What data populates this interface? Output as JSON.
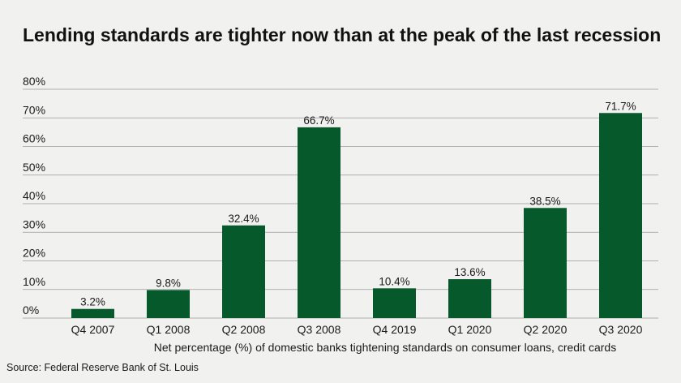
{
  "chart_data": {
    "type": "bar",
    "title": "Lending standards are tighter now than at the peak of the last recession",
    "xlabel": "Net percentage (%) of domestic banks tightening standards on consumer loans, credit cards",
    "ylabel": "",
    "categories": [
      "Q4 2007",
      "Q1 2008",
      "Q2 2008",
      "Q3 2008",
      "Q4 2019",
      "Q1 2020",
      "Q2 2020",
      "Q3 2020"
    ],
    "values": [
      3.2,
      9.8,
      32.4,
      66.7,
      10.4,
      13.6,
      38.5,
      71.7
    ],
    "value_labels": [
      "3.2%",
      "9.8%",
      "32.4%",
      "66.7%",
      "10.4%",
      "13.6%",
      "38.5%",
      "71.7%"
    ],
    "ylim": [
      0,
      80
    ],
    "yticks": [
      0,
      10,
      20,
      30,
      40,
      50,
      60,
      70,
      80
    ],
    "ytick_labels": [
      "0%",
      "10%",
      "20%",
      "30%",
      "40%",
      "50%",
      "60%",
      "70%",
      "80%"
    ],
    "grid": true,
    "legend": false,
    "source": "Source: Federal Reserve Bank of St. Louis",
    "colors": {
      "bar": "#05592b",
      "grid": "#9a9a9a",
      "background": "#f1f2ef"
    }
  }
}
